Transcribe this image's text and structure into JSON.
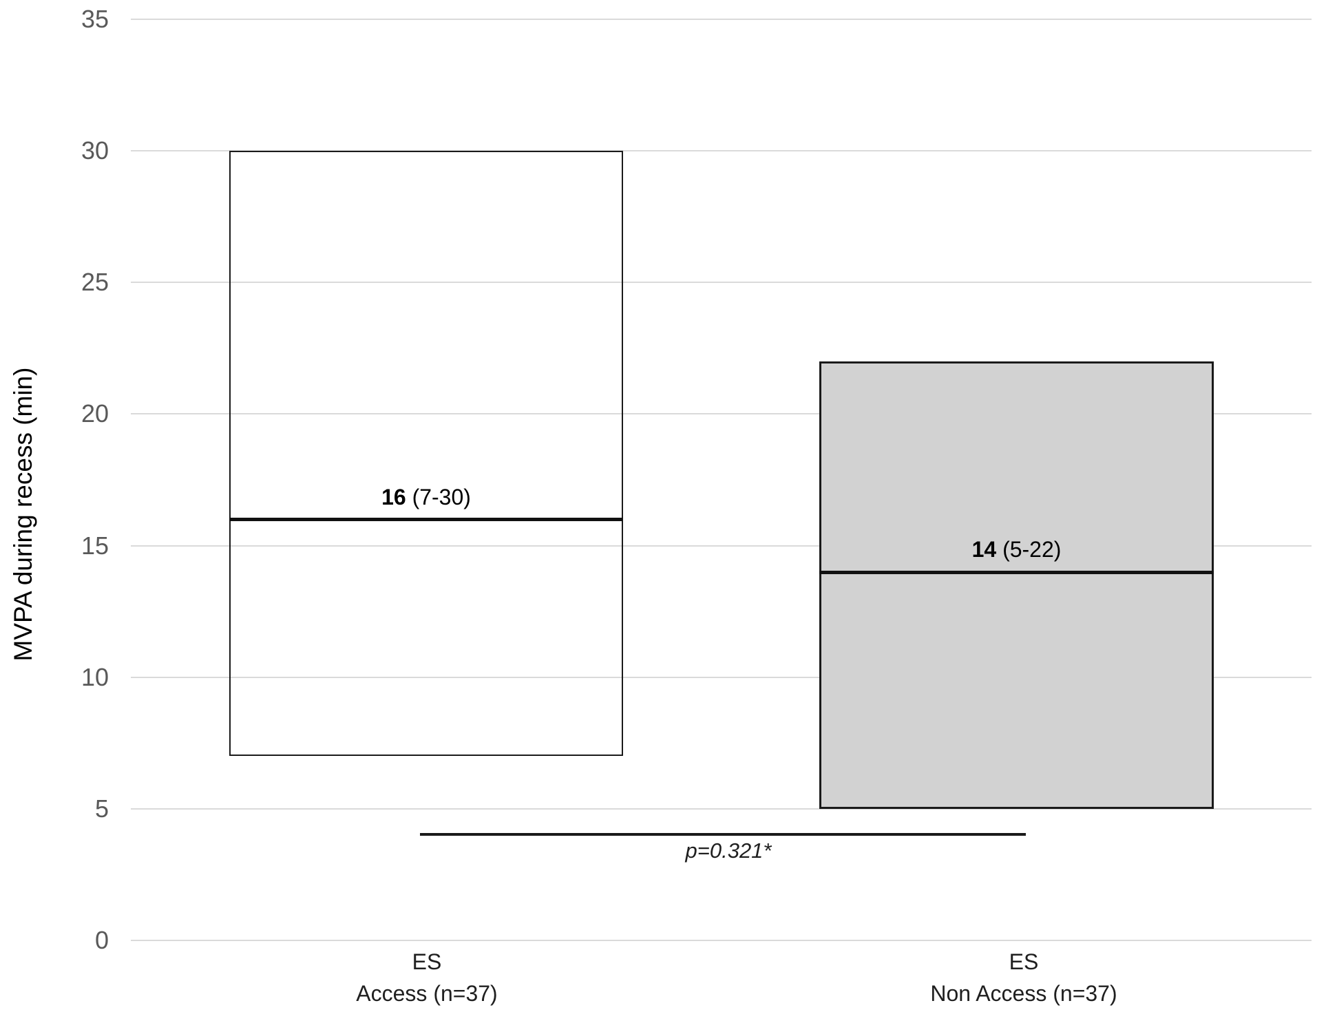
{
  "chart_data": {
    "type": "bar",
    "subtype": "floating-range-bar",
    "title": "",
    "xlabel": "",
    "ylabel": "MVPA during recess (min)",
    "ylim": [
      0,
      35
    ],
    "yticks": [
      0,
      5,
      10,
      15,
      20,
      25,
      30,
      35
    ],
    "ytick_labels": [
      "0",
      "5",
      "10",
      "15",
      "20",
      "25",
      "30",
      "35"
    ],
    "grid": true,
    "legend": false,
    "categories": [
      "ES Access (n=37)",
      "ES Non Access (n=37)"
    ],
    "bars": [
      {
        "name": "ES Access (n=37)",
        "min": 7,
        "max": 30,
        "median": 16,
        "median_bold": "16",
        "median_rest": " (7-30)",
        "fill": "none",
        "border": "#1a1a1a"
      },
      {
        "name": "ES Non Access (n=37)",
        "min": 5,
        "max": 22,
        "median": 14,
        "median_bold": "14",
        "median_rest": " (5-22)",
        "fill": "#d2d2d2",
        "border": "#1a1a1a"
      }
    ],
    "annotations": [
      {
        "text": "p=0.321*",
        "style": "italic",
        "between": [
          "ES Access (n=37)",
          "ES Non Access (n=37)"
        ]
      }
    ],
    "colors": {
      "gridline": "#dadada",
      "y_tick_text": "#595959",
      "x_label_text": "#1f1f1f",
      "bar_border": "#1a1a1a",
      "gray_fill": "#d2d2d2",
      "median_line": "#111111"
    }
  },
  "x_labels": [
    {
      "line1": "ES",
      "line2": "Access (n=37)"
    },
    {
      "line1": "ES",
      "line2": "Non Access (n=37)"
    }
  ],
  "p_label": "p=0.321*"
}
